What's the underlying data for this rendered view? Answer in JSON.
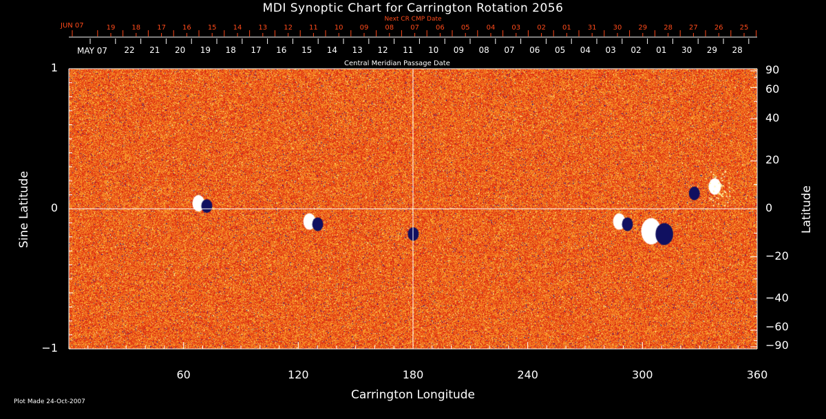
{
  "chart_data": {
    "type": "heatmap",
    "title": "MDI Synoptic Chart for Carrington Rotation 2056",
    "xlabel": "Carrington Longitude",
    "ylabel_left": "Sine Latitude",
    "ylabel_right": "Latitude",
    "xlim": [
      0,
      360
    ],
    "ylim": [
      -1,
      1
    ],
    "x_ticks": [
      "60",
      "120",
      "180",
      "240",
      "300",
      "360"
    ],
    "y_ticks_left": [
      "1",
      "0",
      "−1"
    ],
    "y_ticks_right": [
      "90",
      "60",
      "40",
      "20",
      "0",
      "−20",
      "−40",
      "−60",
      "−90"
    ],
    "y_ticks_right_values": [
      90,
      60,
      40,
      20,
      0,
      -20,
      -40,
      -60,
      -90
    ],
    "top_axis_cmp": {
      "label": "Central Meridian Passage Date",
      "first": "MAY 07",
      "days": [
        "22",
        "21",
        "20",
        "19",
        "18",
        "17",
        "16",
        "15",
        "14",
        "13",
        "12",
        "11",
        "10",
        "09",
        "08",
        "07",
        "06",
        "05",
        "04",
        "03",
        "02",
        "01",
        "30",
        "29",
        "28"
      ]
    },
    "top_axis_next_cr": {
      "label": "Next CR CMP Date",
      "first": "JUN 07",
      "days": [
        "19",
        "18",
        "17",
        "16",
        "15",
        "14",
        "13",
        "12",
        "11",
        "10",
        "09",
        "08",
        "07",
        "06",
        "05",
        "04",
        "03",
        "02",
        "01",
        "31",
        "30",
        "29",
        "28",
        "27",
        "26",
        "25"
      ]
    },
    "gridlines": {
      "longitude": 180,
      "sine_latitude": 0
    },
    "colors": {
      "background_field": "#e8401a",
      "positive": "#ffffff",
      "negative": "#101060",
      "grid": "#ffffff",
      "next_cr_axis": "#ff4a1a"
    },
    "active_regions": [
      {
        "longitude": 70,
        "sine_latitude": 0.03,
        "polarity": "mixed"
      },
      {
        "longitude": 128,
        "sine_latitude": -0.1,
        "polarity": "mixed"
      },
      {
        "longitude": 178,
        "sine_latitude": -0.17,
        "polarity": "negative"
      },
      {
        "longitude": 290,
        "sine_latitude": -0.1,
        "polarity": "mixed"
      },
      {
        "longitude": 308,
        "sine_latitude": -0.17,
        "polarity": "mixed"
      },
      {
        "longitude": 325,
        "sine_latitude": 0.12,
        "polarity": "negative"
      },
      {
        "longitude": 340,
        "sine_latitude": 0.15,
        "polarity": "positive"
      }
    ]
  },
  "footer": "Plot Made 24-Oct-2007"
}
